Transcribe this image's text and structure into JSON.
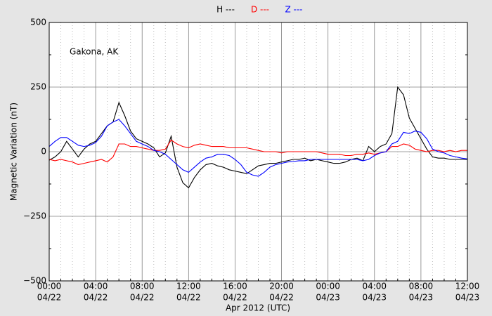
{
  "chart_data": {
    "type": "line",
    "annotation": "Gakona, AK",
    "xlabel": "Apr 2012 (UTC)",
    "ylabel": "Magnetic Variation (nT)",
    "x": [
      0,
      0.5,
      1,
      1.5,
      2,
      2.5,
      3,
      3.5,
      4,
      4.5,
      5,
      5.5,
      6,
      6.5,
      7,
      7.5,
      8,
      8.5,
      9,
      9.5,
      10,
      10.5,
      11,
      11.5,
      12,
      12.5,
      13,
      13.5,
      14,
      14.5,
      15,
      15.5,
      16,
      16.5,
      17,
      17.5,
      18,
      18.5,
      19,
      19.5,
      20,
      20.5,
      21,
      21.5,
      22,
      22.5,
      23,
      23.5,
      24,
      24.5,
      25,
      25.5,
      26,
      26.5,
      27,
      27.5,
      28,
      28.5,
      29,
      29.5,
      30,
      30.5,
      31,
      31.5,
      32,
      32.5,
      33,
      33.5,
      34,
      34.5,
      35,
      35.5,
      36
    ],
    "series": [
      {
        "name": "H ---",
        "color": "#000000",
        "values": [
          -33,
          -20,
          0,
          40,
          10,
          -20,
          10,
          30,
          40,
          70,
          100,
          115,
          190,
          140,
          80,
          50,
          40,
          30,
          15,
          -20,
          -5,
          60,
          -60,
          -120,
          -140,
          -100,
          -70,
          -50,
          -45,
          -55,
          -60,
          -70,
          -75,
          -80,
          -85,
          -70,
          -55,
          -50,
          -45,
          -45,
          -40,
          -35,
          -30,
          -30,
          -25,
          -35,
          -30,
          -35,
          -40,
          -45,
          -45,
          -40,
          -30,
          -25,
          -35,
          20,
          0,
          20,
          30,
          70,
          250,
          220,
          130,
          90,
          50,
          10,
          -20,
          -25,
          -25,
          -30,
          -30,
          -30,
          -30
        ]
      },
      {
        "name": "D ---",
        "color": "#ff0000",
        "values": [
          -30,
          -35,
          -30,
          -35,
          -40,
          -50,
          -45,
          -40,
          -35,
          -30,
          -40,
          -20,
          30,
          30,
          20,
          20,
          15,
          10,
          5,
          5,
          10,
          45,
          30,
          20,
          15,
          25,
          30,
          25,
          20,
          20,
          20,
          15,
          15,
          15,
          15,
          10,
          5,
          0,
          0,
          0,
          -5,
          0,
          0,
          0,
          0,
          0,
          0,
          -5,
          -10,
          -10,
          -10,
          -15,
          -15,
          -10,
          -10,
          -5,
          -10,
          -5,
          0,
          20,
          20,
          30,
          25,
          10,
          5,
          0,
          5,
          5,
          0,
          5,
          0,
          5,
          5
        ]
      },
      {
        "name": "Z ---",
        "color": "#0000ff",
        "values": [
          20,
          40,
          55,
          55,
          40,
          25,
          20,
          25,
          35,
          60,
          100,
          115,
          125,
          100,
          70,
          40,
          30,
          20,
          5,
          0,
          -10,
          -30,
          -50,
          -70,
          -80,
          -60,
          -40,
          -25,
          -20,
          -10,
          -10,
          -15,
          -30,
          -50,
          -80,
          -90,
          -95,
          -80,
          -60,
          -50,
          -45,
          -40,
          -38,
          -35,
          -35,
          -30,
          -30,
          -30,
          -30,
          -30,
          -30,
          -30,
          -30,
          -30,
          -35,
          -30,
          -15,
          -5,
          0,
          30,
          40,
          75,
          70,
          80,
          75,
          50,
          10,
          0,
          -5,
          -15,
          -20,
          -25,
          -28
        ]
      }
    ],
    "xlim": [
      0,
      36
    ],
    "xticks": [
      {
        "value": 0,
        "label": [
          "00:00",
          "04/22"
        ]
      },
      {
        "value": 4,
        "label": [
          "04:00",
          "04/22"
        ]
      },
      {
        "value": 8,
        "label": [
          "08:00",
          "04/22"
        ]
      },
      {
        "value": 12,
        "label": [
          "12:00",
          "04/22"
        ]
      },
      {
        "value": 16,
        "label": [
          "16:00",
          "04/22"
        ]
      },
      {
        "value": 20,
        "label": [
          "20:00",
          "04/22"
        ]
      },
      {
        "value": 24,
        "label": [
          "00:00",
          "04/23"
        ]
      },
      {
        "value": 28,
        "label": [
          "04:00",
          "04/23"
        ]
      },
      {
        "value": 32,
        "label": [
          "08:00",
          "04/23"
        ]
      },
      {
        "value": 36,
        "label": [
          "12:00",
          "04/23"
        ]
      }
    ],
    "ylim": [
      -500,
      500
    ],
    "yticks": [
      {
        "value": -500,
        "label": "−500"
      },
      {
        "value": -250,
        "label": "−250"
      },
      0,
      250,
      500
    ],
    "grid": true
  }
}
